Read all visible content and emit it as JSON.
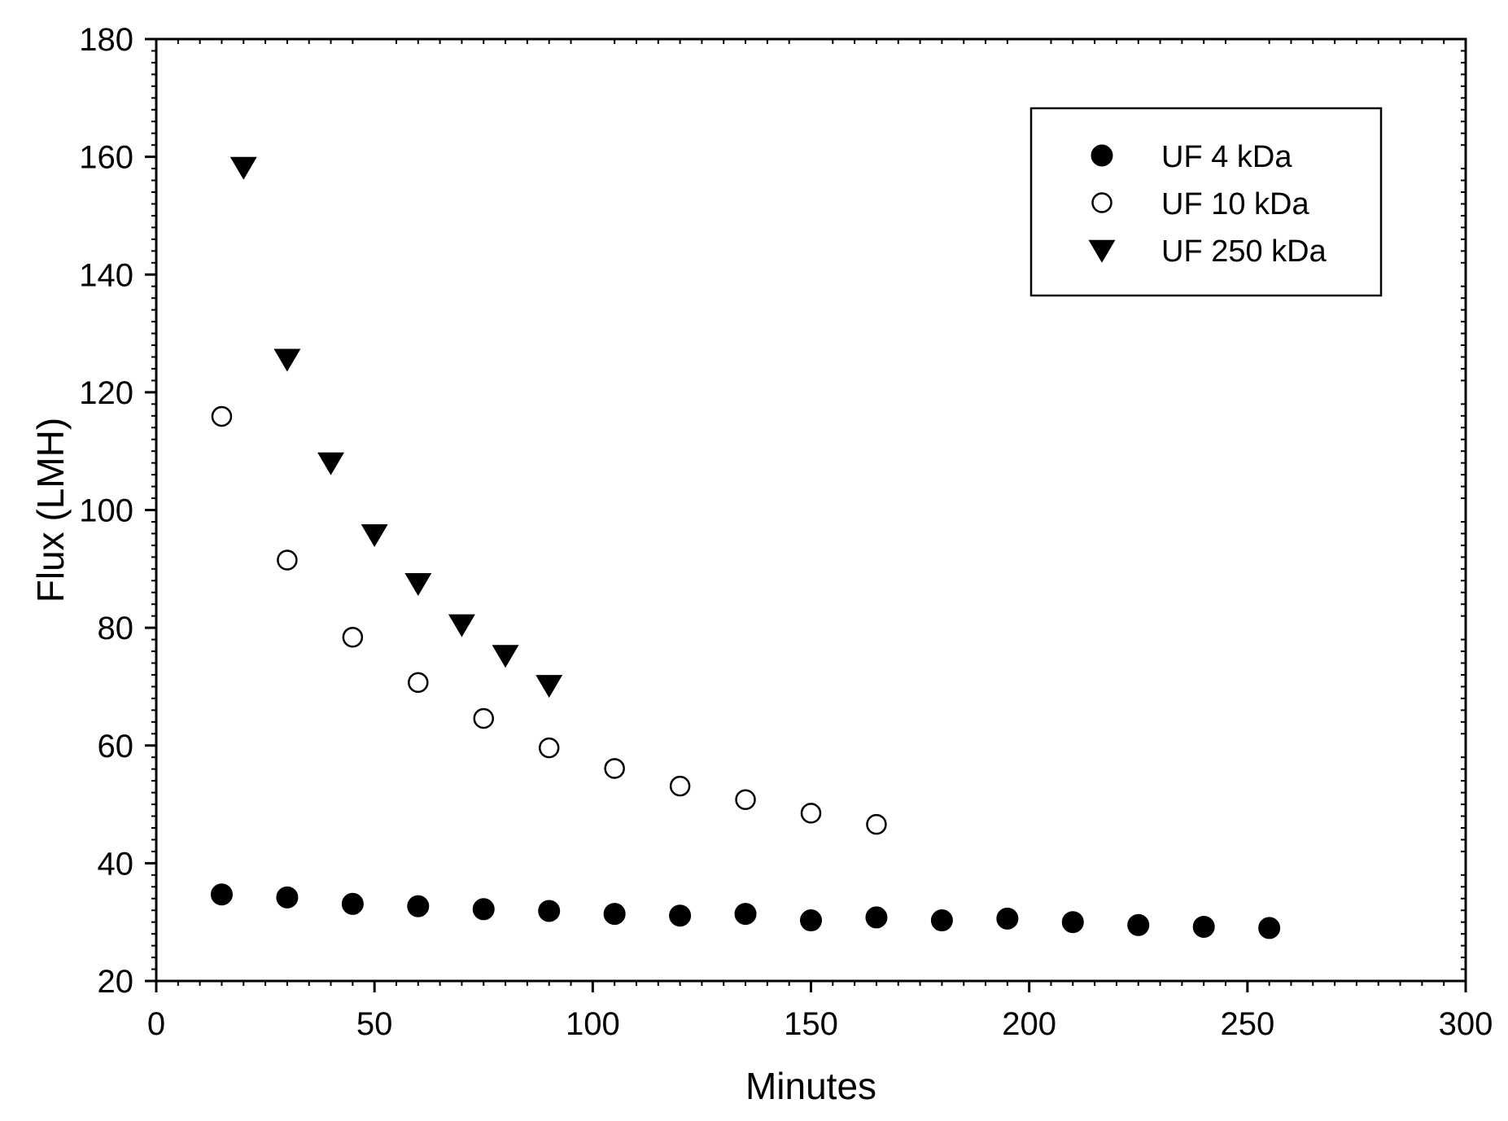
{
  "chart_data": {
    "type": "scatter",
    "title": "",
    "xlabel": "Minutes",
    "ylabel": "Flux (LMH)",
    "xlim": [
      0,
      300
    ],
    "ylim": [
      20,
      180
    ],
    "xticks": [
      0,
      50,
      100,
      150,
      200,
      250,
      300
    ],
    "yticks": [
      20,
      40,
      60,
      80,
      100,
      120,
      140,
      160,
      180
    ],
    "grid": false,
    "legend_position": "top-right",
    "series": [
      {
        "name": "UF 4 kDa",
        "marker": "filled-circle",
        "color": "#000000",
        "x": [
          15,
          30,
          45,
          60,
          75,
          90,
          105,
          120,
          135,
          150,
          165,
          180,
          195,
          210,
          225,
          240,
          255
        ],
        "y": [
          34.7,
          34.2,
          33.1,
          32.7,
          32.2,
          31.9,
          31.4,
          31.1,
          31.4,
          30.3,
          30.8,
          30.3,
          30.6,
          30.0,
          29.5,
          29.2,
          29.0
        ]
      },
      {
        "name": "UF 10 kDa",
        "marker": "open-circle",
        "color": "#000000",
        "x": [
          15,
          30,
          45,
          60,
          75,
          90,
          105,
          120,
          135,
          150,
          165
        ],
        "y": [
          115.9,
          91.5,
          78.4,
          70.7,
          64.6,
          59.6,
          56.1,
          53.1,
          50.8,
          48.5,
          46.6
        ]
      },
      {
        "name": "UF 250 kDa",
        "marker": "filled-triangle-down",
        "color": "#000000",
        "x": [
          20,
          30,
          40,
          50,
          60,
          70,
          80,
          90
        ],
        "y": [
          158.3,
          125.7,
          108.1,
          95.9,
          87.6,
          80.6,
          75.4,
          70.3
        ]
      }
    ]
  }
}
